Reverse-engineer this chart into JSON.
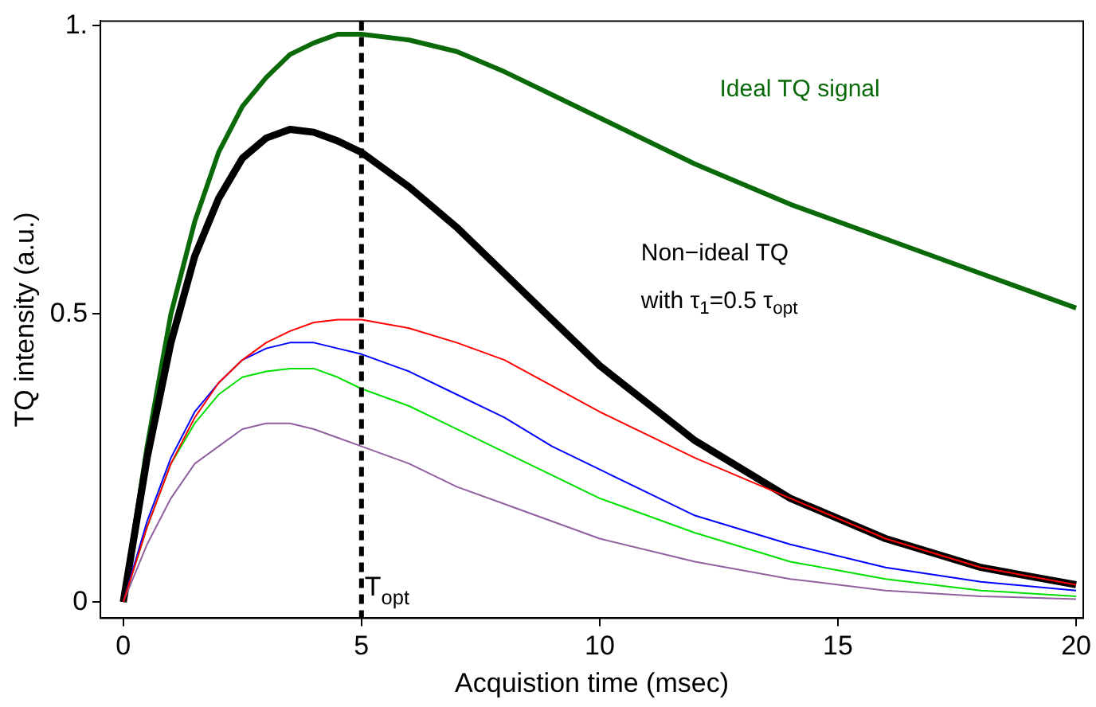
{
  "chart_data": {
    "type": "line",
    "xlabel": "Acquistion time (msec)",
    "ylabel": "TQ intensity (a.u.)",
    "xlim": [
      -0.48,
      20.15
    ],
    "xticks": [
      0,
      5,
      10,
      15,
      20
    ],
    "ylim": [
      -0.028,
      1.008
    ],
    "yticks": [
      0,
      0.5,
      {
        "value": 1,
        "label": "1."
      }
    ],
    "grid": false,
    "legend": false,
    "marker": "none",
    "line_style": "solid",
    "ref_lines": [
      {
        "axis": "x",
        "value": 5,
        "label": "T$_{opt}$",
        "line_style": "dashed",
        "color": "#000000"
      }
    ],
    "annotations": [
      "Ideal TQ signal",
      "Non−ideal TQ",
      "with τ$_{1}$=0.5 τ$_{opt}$"
    ],
    "series": [
      {
        "color": "#0a6a0a",
        "x": [
          0,
          0.5,
          1,
          1.5,
          2,
          2.5,
          3,
          3.5,
          4,
          4.5,
          5,
          6,
          7,
          8,
          9,
          10,
          12,
          14,
          16,
          18,
          20
        ],
        "values": [
          0,
          0.27,
          0.5,
          0.66,
          0.78,
          0.86,
          0.91,
          0.95,
          0.97,
          0.985,
          0.985,
          0.975,
          0.955,
          0.92,
          0.88,
          0.84,
          0.76,
          0.69,
          0.63,
          0.57,
          0.51
        ]
      },
      {
        "color": "#000000",
        "x": [
          0,
          0.5,
          1,
          1.5,
          2,
          2.5,
          3,
          3.5,
          4,
          4.5,
          5,
          6,
          7,
          8,
          9,
          10,
          12,
          14,
          16,
          18,
          20
        ],
        "values": [
          0,
          0.25,
          0.45,
          0.6,
          0.7,
          0.77,
          0.805,
          0.82,
          0.815,
          0.8,
          0.78,
          0.72,
          0.65,
          0.57,
          0.49,
          0.41,
          0.28,
          0.18,
          0.11,
          0.06,
          0.03
        ]
      },
      {
        "color": "#ff0000",
        "x": [
          0,
          0.5,
          1,
          1.5,
          2,
          2.5,
          3,
          3.5,
          4,
          4.5,
          5,
          6,
          7,
          8,
          9,
          10,
          12,
          14,
          16,
          18,
          20
        ],
        "values": [
          0,
          0.13,
          0.24,
          0.32,
          0.38,
          0.42,
          0.45,
          0.47,
          0.485,
          0.49,
          0.49,
          0.475,
          0.45,
          0.42,
          0.375,
          0.33,
          0.25,
          0.18,
          0.11,
          0.06,
          0.03
        ]
      },
      {
        "color": "#0000ff",
        "x": [
          0,
          0.5,
          1,
          1.5,
          2,
          2.5,
          3,
          3.5,
          4,
          4.5,
          5,
          6,
          7,
          8,
          9,
          10,
          12,
          14,
          16,
          18,
          20
        ],
        "values": [
          0,
          0.14,
          0.25,
          0.33,
          0.38,
          0.42,
          0.44,
          0.45,
          0.45,
          0.44,
          0.43,
          0.4,
          0.36,
          0.32,
          0.27,
          0.23,
          0.15,
          0.1,
          0.06,
          0.035,
          0.02
        ]
      },
      {
        "color": "#00e000",
        "x": [
          0,
          0.5,
          1,
          1.5,
          2,
          2.5,
          3,
          3.5,
          4,
          4.5,
          5,
          6,
          7,
          8,
          9,
          10,
          12,
          14,
          16,
          18,
          20
        ],
        "values": [
          0,
          0.13,
          0.24,
          0.31,
          0.36,
          0.39,
          0.4,
          0.405,
          0.405,
          0.39,
          0.37,
          0.34,
          0.3,
          0.26,
          0.22,
          0.18,
          0.12,
          0.07,
          0.04,
          0.02,
          0.01
        ]
      },
      {
        "color": "#9060a0",
        "x": [
          0,
          0.5,
          1,
          1.5,
          2,
          2.5,
          3,
          3.5,
          4,
          4.5,
          5,
          6,
          7,
          8,
          9,
          10,
          12,
          14,
          16,
          18,
          20
        ],
        "values": [
          0,
          0.1,
          0.18,
          0.24,
          0.27,
          0.3,
          0.31,
          0.31,
          0.3,
          0.285,
          0.27,
          0.24,
          0.2,
          0.17,
          0.14,
          0.11,
          0.07,
          0.04,
          0.02,
          0.01,
          0.005
        ]
      }
    ]
  }
}
